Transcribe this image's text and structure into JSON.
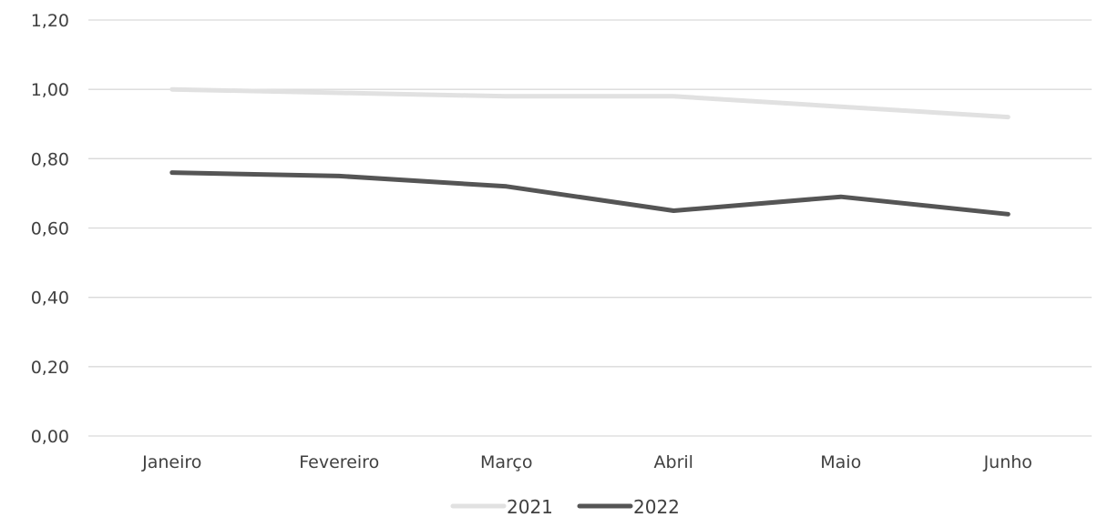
{
  "chart_data": {
    "type": "line",
    "title": "",
    "xlabel": "",
    "ylabel": "",
    "categories": [
      "Janeiro",
      "Fevereiro",
      "Março",
      "Abril",
      "Maio",
      "Junho"
    ],
    "ylim": [
      0,
      1.2
    ],
    "yticks": [
      "0,00",
      "0,20",
      "0,40",
      "0,60",
      "0,80",
      "1,00",
      "1,20"
    ],
    "grid": true,
    "legend_position": "bottom",
    "series": [
      {
        "name": "2021",
        "values": [
          1.0,
          0.99,
          0.98,
          0.98,
          0.95,
          0.92
        ],
        "color": "#e1e1e1"
      },
      {
        "name": "2022",
        "values": [
          0.76,
          0.75,
          0.72,
          0.65,
          0.69,
          0.64
        ],
        "color": "#555555"
      }
    ]
  }
}
